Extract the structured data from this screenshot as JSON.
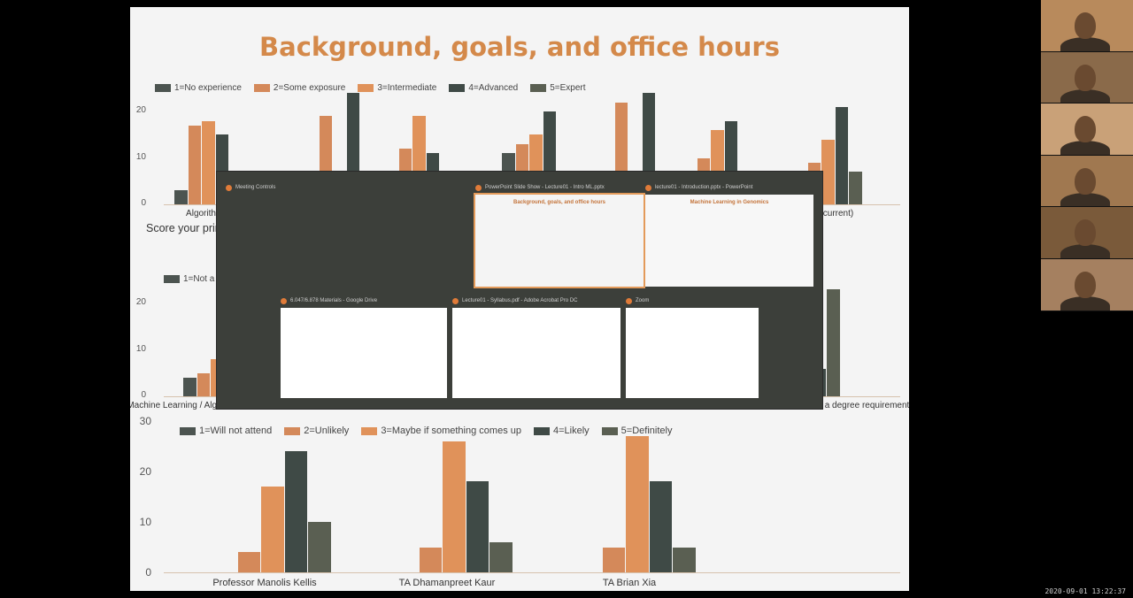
{
  "slide": {
    "title": "Background, goals, and office hours",
    "prompt": "Score your prim"
  },
  "colors": {
    "c1": "#4c5450",
    "c2": "#d4895a",
    "c3": "#e0925a",
    "c4": "#3f4a46",
    "c5": "#5a5f52",
    "accent": "#e39a5a"
  },
  "chart_data": [
    {
      "type": "bar",
      "legend": [
        "1=No experience",
        "2=Some exposure",
        "3=Intermediate",
        "4=Advanced",
        "5=Expert"
      ],
      "ylim": [
        0,
        25
      ],
      "yticks": [
        0,
        10,
        20
      ],
      "categories": [
        "Algorith",
        "",
        "",
        "",
        "",
        "",
        "current)"
      ],
      "series": [
        {
          "name": "1=No experience",
          "values": [
            3,
            0,
            0,
            11,
            0,
            0,
            0
          ]
        },
        {
          "name": "2=Some exposure",
          "values": [
            17,
            19,
            12,
            13,
            22,
            10,
            9
          ]
        },
        {
          "name": "3=Intermediate",
          "values": [
            18,
            0,
            19,
            15,
            0,
            16,
            14
          ]
        },
        {
          "name": "4=Advanced",
          "values": [
            15,
            24,
            11,
            20,
            24,
            18,
            21
          ]
        },
        {
          "name": "5=Expert",
          "values": [
            0,
            0,
            0,
            0,
            0,
            0,
            7
          ]
        }
      ]
    },
    {
      "type": "bar",
      "legend": [
        "1=Not a"
      ],
      "ylim": [
        0,
        25
      ],
      "yticks": [
        0,
        10,
        20
      ],
      "categories": [
        "Machine Learning / Algo",
        "l a degree requirement"
      ],
      "series": [
        {
          "name": "1=Not a",
          "values": [
            4,
            0
          ]
        },
        {
          "name": "",
          "values": [
            5,
            6
          ]
        },
        {
          "name": "",
          "values": [
            8,
            10
          ]
        },
        {
          "name": "",
          "values": [
            0,
            6
          ]
        },
        {
          "name": "",
          "values": [
            0,
            23
          ]
        }
      ]
    },
    {
      "type": "bar",
      "legend": [
        "1=Will not attend",
        "2=Unlikely",
        "3=Maybe if something comes up",
        "4=Likely",
        "5=Definitely"
      ],
      "ylim": [
        0,
        30
      ],
      "yticks": [
        0,
        10,
        20,
        30
      ],
      "categories": [
        "Professor Manolis Kellis",
        "TA Dhamanpreet Kaur",
        "TA Brian Xia"
      ],
      "series": [
        {
          "name": "1=Will not attend",
          "values": [
            0,
            0,
            0
          ]
        },
        {
          "name": "2=Unlikely",
          "values": [
            4,
            5,
            5
          ]
        },
        {
          "name": "3=Maybe if something comes up",
          "values": [
            17,
            26,
            27
          ]
        },
        {
          "name": "4=Likely",
          "values": [
            24,
            18,
            18
          ]
        },
        {
          "name": "5=Definitely",
          "values": [
            10,
            6,
            5
          ]
        }
      ]
    }
  ],
  "switcher": {
    "windows": [
      {
        "title": "Meeting Controls",
        "selected": false
      },
      {
        "title": "PowerPoint Slide Show - Lecture01 - Intro ML.pptx",
        "selected": true,
        "mini_title": "Background, goals, and office hours"
      },
      {
        "title": "lecture01 - Introduction.pptx - PowerPoint",
        "selected": false,
        "mini_title": "Machine Learning in Genomics"
      },
      {
        "title": "6.047/6.878 Materials - Google Drive",
        "selected": false
      },
      {
        "title": "Lecture01 - Syllabus.pdf - Adobe Acrobat Pro DC",
        "selected": false
      },
      {
        "title": "Zoom",
        "selected": false
      }
    ]
  },
  "timestamp": "2020-09-01  13:22:37",
  "webcams": [
    {
      "name": "participant-1"
    },
    {
      "name": "participant-2"
    },
    {
      "name": "participant-3"
    },
    {
      "name": "participant-4"
    },
    {
      "name": "participant-5"
    },
    {
      "name": "participant-6"
    }
  ]
}
